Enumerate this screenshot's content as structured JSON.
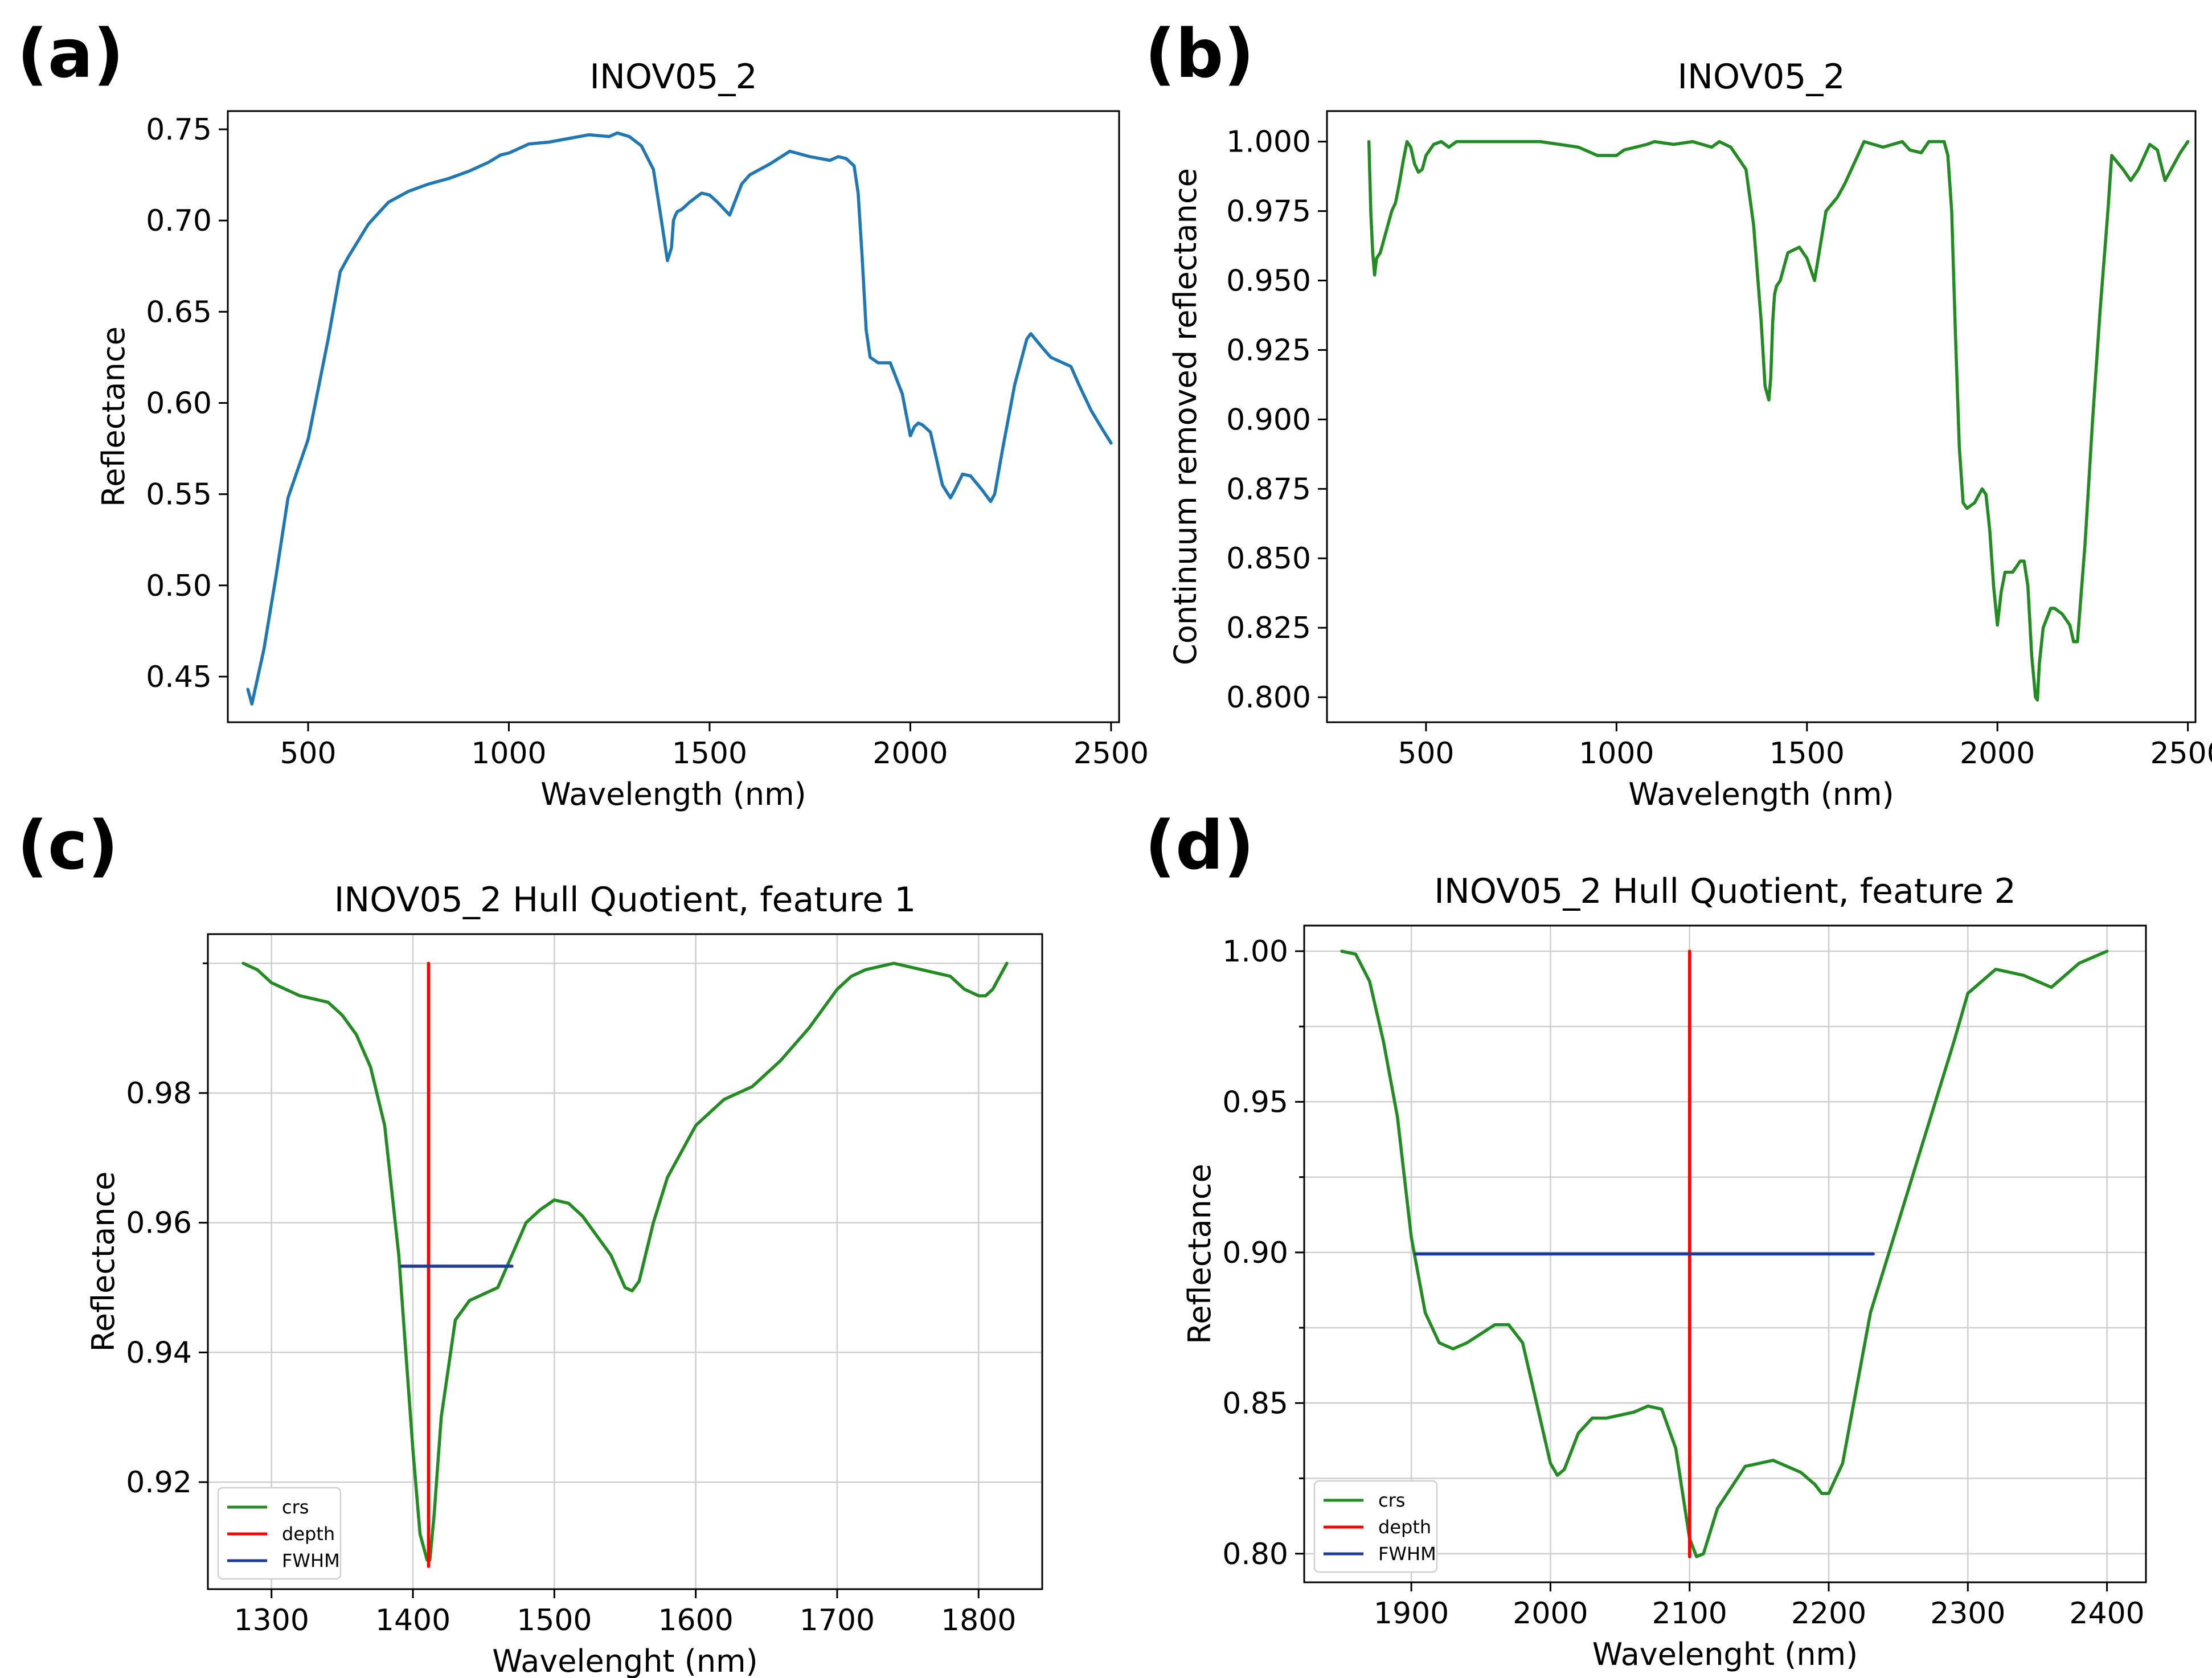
{
  "chart_data": [
    {
      "id": "a",
      "panel_label": "(a)",
      "type": "line",
      "title": "INOV05_2",
      "xlabel": "Wavelength (nm)",
      "ylabel": "Reflectance",
      "xlim": [
        300,
        2520
      ],
      "ylim": [
        0.425,
        0.76
      ],
      "xticks": [
        500,
        1000,
        1500,
        2000,
        2500
      ],
      "yticks": [
        0.45,
        0.5,
        0.55,
        0.6,
        0.65,
        0.7,
        0.75
      ],
      "ytick_decimals": 2,
      "grid": false,
      "series": [
        {
          "name": "reflectance",
          "color": "#1f77b4",
          "x": [
            350,
            360,
            370,
            390,
            420,
            450,
            500,
            550,
            580,
            600,
            650,
            700,
            750,
            800,
            850,
            900,
            950,
            980,
            1000,
            1050,
            1100,
            1150,
            1200,
            1250,
            1270,
            1300,
            1330,
            1360,
            1380,
            1395,
            1405,
            1410,
            1415,
            1420,
            1430,
            1450,
            1480,
            1500,
            1520,
            1550,
            1580,
            1600,
            1650,
            1700,
            1750,
            1800,
            1820,
            1840,
            1860,
            1870,
            1880,
            1890,
            1900,
            1920,
            1950,
            1980,
            2000,
            2010,
            2020,
            2030,
            2050,
            2080,
            2100,
            2110,
            2130,
            2150,
            2180,
            2200,
            2210,
            2230,
            2260,
            2290,
            2300,
            2330,
            2350,
            2380,
            2400,
            2420,
            2450,
            2480,
            2500
          ],
          "y": [
            0.443,
            0.435,
            0.445,
            0.465,
            0.505,
            0.548,
            0.58,
            0.635,
            0.672,
            0.68,
            0.698,
            0.71,
            0.716,
            0.72,
            0.723,
            0.727,
            0.732,
            0.736,
            0.737,
            0.742,
            0.743,
            0.745,
            0.747,
            0.746,
            0.748,
            0.746,
            0.741,
            0.728,
            0.7,
            0.678,
            0.685,
            0.7,
            0.703,
            0.705,
            0.706,
            0.71,
            0.715,
            0.714,
            0.71,
            0.703,
            0.72,
            0.725,
            0.731,
            0.738,
            0.735,
            0.733,
            0.735,
            0.734,
            0.73,
            0.715,
            0.68,
            0.64,
            0.625,
            0.622,
            0.622,
            0.605,
            0.582,
            0.587,
            0.589,
            0.588,
            0.584,
            0.555,
            0.548,
            0.552,
            0.561,
            0.56,
            0.552,
            0.546,
            0.55,
            0.575,
            0.61,
            0.635,
            0.638,
            0.63,
            0.625,
            0.622,
            0.62,
            0.61,
            0.596,
            0.585,
            0.578
          ]
        }
      ]
    },
    {
      "id": "b",
      "panel_label": "(b)",
      "type": "line",
      "title": "INOV05_2",
      "xlabel": "Wavelength (nm)",
      "ylabel": "Continuum removed reflectance",
      "xlim": [
        240,
        2520
      ],
      "ylim": [
        0.791,
        1.011
      ],
      "xticks": [
        500,
        1000,
        1500,
        2000,
        2500
      ],
      "yticks": [
        0.8,
        0.825,
        0.85,
        0.875,
        0.9,
        0.925,
        0.95,
        0.975,
        1.0
      ],
      "ytick_decimals": 3,
      "grid": false,
      "series": [
        {
          "name": "continuum removed",
          "color": "#228b22",
          "x": [
            350,
            355,
            360,
            365,
            370,
            380,
            390,
            400,
            410,
            420,
            430,
            440,
            450,
            460,
            470,
            480,
            490,
            500,
            520,
            540,
            560,
            580,
            600,
            700,
            800,
            900,
            950,
            1000,
            1020,
            1050,
            1080,
            1100,
            1150,
            1200,
            1250,
            1270,
            1300,
            1340,
            1360,
            1380,
            1390,
            1400,
            1405,
            1410,
            1415,
            1420,
            1430,
            1450,
            1480,
            1500,
            1520,
            1550,
            1580,
            1600,
            1650,
            1700,
            1750,
            1770,
            1800,
            1820,
            1850,
            1860,
            1870,
            1880,
            1890,
            1900,
            1910,
            1920,
            1940,
            1960,
            1970,
            1980,
            1990,
            2000,
            2010,
            2020,
            2030,
            2040,
            2060,
            2070,
            2080,
            2090,
            2100,
            2105,
            2110,
            2120,
            2140,
            2150,
            2170,
            2190,
            2200,
            2210,
            2230,
            2250,
            2270,
            2290,
            2300,
            2330,
            2350,
            2370,
            2400,
            2420,
            2440,
            2460,
            2480,
            2500
          ],
          "y": [
            1.0,
            0.975,
            0.96,
            0.952,
            0.958,
            0.96,
            0.965,
            0.97,
            0.975,
            0.978,
            0.985,
            0.993,
            1.0,
            0.998,
            0.992,
            0.989,
            0.99,
            0.995,
            0.999,
            1.0,
            0.998,
            1.0,
            1.0,
            1.0,
            1.0,
            0.998,
            0.995,
            0.995,
            0.997,
            0.998,
            0.999,
            1.0,
            0.999,
            1.0,
            0.998,
            1.0,
            0.998,
            0.99,
            0.97,
            0.935,
            0.912,
            0.907,
            0.915,
            0.935,
            0.945,
            0.948,
            0.95,
            0.96,
            0.962,
            0.958,
            0.95,
            0.975,
            0.98,
            0.985,
            1.0,
            0.998,
            1.0,
            0.997,
            0.996,
            1.0,
            1.0,
            1.0,
            0.995,
            0.975,
            0.93,
            0.89,
            0.87,
            0.868,
            0.87,
            0.875,
            0.873,
            0.86,
            0.84,
            0.826,
            0.838,
            0.845,
            0.845,
            0.845,
            0.849,
            0.849,
            0.84,
            0.815,
            0.8,
            0.799,
            0.812,
            0.825,
            0.832,
            0.832,
            0.83,
            0.826,
            0.82,
            0.82,
            0.855,
            0.9,
            0.94,
            0.975,
            0.995,
            0.99,
            0.986,
            0.99,
            0.999,
            0.997,
            0.986,
            0.991,
            0.996,
            1.0
          ]
        }
      ]
    },
    {
      "id": "c",
      "panel_label": "(c)",
      "type": "line",
      "title": "INOV05_2 Hull Quotient, feature 1",
      "xlabel": "Wavelenght (nm)",
      "ylabel": "Reflectance",
      "xlim": [
        1255,
        1845
      ],
      "ylim": [
        0.9035,
        1.0045
      ],
      "xticks": [
        1300,
        1400,
        1500,
        1600,
        1700,
        1800
      ],
      "yticks": [
        0.92,
        0.94,
        0.96,
        0.98
      ],
      "ytick_decimals": 2,
      "minor_yticks": [
        1.0
      ],
      "grid": true,
      "legend": {
        "location": "lower-left",
        "entries": [
          "crs",
          "depth",
          "FWHM"
        ]
      },
      "series": [
        {
          "name": "crs",
          "color": "#228b22",
          "x": [
            1280,
            1290,
            1300,
            1320,
            1340,
            1350,
            1360,
            1370,
            1380,
            1390,
            1395,
            1400,
            1405,
            1410,
            1412,
            1415,
            1420,
            1430,
            1440,
            1450,
            1460,
            1470,
            1480,
            1490,
            1500,
            1510,
            1520,
            1530,
            1540,
            1550,
            1555,
            1560,
            1570,
            1580,
            1600,
            1620,
            1640,
            1660,
            1680,
            1700,
            1710,
            1720,
            1740,
            1760,
            1780,
            1790,
            1800,
            1805,
            1810,
            1815,
            1820
          ],
          "y": [
            1.0,
            0.999,
            0.997,
            0.995,
            0.994,
            0.992,
            0.989,
            0.984,
            0.975,
            0.955,
            0.94,
            0.925,
            0.912,
            0.908,
            0.908,
            0.915,
            0.93,
            0.945,
            0.948,
            0.949,
            0.95,
            0.955,
            0.96,
            0.962,
            0.9635,
            0.963,
            0.961,
            0.958,
            0.955,
            0.95,
            0.9495,
            0.951,
            0.96,
            0.967,
            0.975,
            0.979,
            0.981,
            0.985,
            0.99,
            0.996,
            0.998,
            0.999,
            1.0,
            0.999,
            0.998,
            0.996,
            0.995,
            0.995,
            0.996,
            0.998,
            1.0
          ]
        },
        {
          "name": "depth",
          "color": "#ff0000",
          "x": [
            1411,
            1411
          ],
          "y": [
            0.907,
            1.0
          ]
        },
        {
          "name": "FWHM",
          "color": "#1f3b99",
          "x": [
            1392,
            1470
          ],
          "y": [
            0.9533,
            0.9533
          ]
        }
      ]
    },
    {
      "id": "d",
      "panel_label": "(d)",
      "type": "line",
      "title": "INOV05_2 Hull Quotient, feature 2",
      "xlabel": "Wavelenght (nm)",
      "ylabel": "Reflectance",
      "xlim": [
        1823,
        2428
      ],
      "ylim": [
        0.7905,
        1.0085
      ],
      "xticks": [
        1900,
        2000,
        2100,
        2200,
        2300,
        2400
      ],
      "yticks": [
        0.8,
        0.85,
        0.9,
        0.95,
        1.0
      ],
      "ytick_decimals": 2,
      "minor_yticks": [
        0.825,
        0.875,
        0.925,
        0.975
      ],
      "grid": true,
      "legend": {
        "location": "lower-left",
        "entries": [
          "crs",
          "depth",
          "FWHM"
        ]
      },
      "series": [
        {
          "name": "crs",
          "color": "#228b22",
          "x": [
            1850,
            1860,
            1870,
            1880,
            1890,
            1900,
            1910,
            1920,
            1930,
            1940,
            1950,
            1960,
            1970,
            1980,
            1990,
            2000,
            2005,
            2010,
            2020,
            2030,
            2040,
            2050,
            2060,
            2070,
            2080,
            2090,
            2095,
            2100,
            2105,
            2110,
            2120,
            2140,
            2160,
            2180,
            2190,
            2195,
            2200,
            2210,
            2230,
            2250,
            2270,
            2290,
            2300,
            2320,
            2340,
            2350,
            2360,
            2370,
            2380,
            2390,
            2400
          ],
          "y": [
            1.0,
            0.999,
            0.99,
            0.97,
            0.945,
            0.905,
            0.88,
            0.87,
            0.868,
            0.87,
            0.873,
            0.876,
            0.876,
            0.87,
            0.85,
            0.83,
            0.826,
            0.828,
            0.84,
            0.845,
            0.845,
            0.846,
            0.847,
            0.849,
            0.848,
            0.835,
            0.82,
            0.805,
            0.799,
            0.8,
            0.815,
            0.829,
            0.831,
            0.827,
            0.823,
            0.82,
            0.82,
            0.83,
            0.88,
            0.91,
            0.94,
            0.97,
            0.986,
            0.994,
            0.992,
            0.99,
            0.988,
            0.992,
            0.996,
            0.998,
            1.0
          ]
        },
        {
          "name": "depth",
          "color": "#ff0000",
          "x": [
            2100,
            2100
          ],
          "y": [
            0.799,
            1.0
          ]
        },
        {
          "name": "FWHM",
          "color": "#1f3b99",
          "x": [
            1903,
            2232
          ],
          "y": [
            0.8995,
            0.8995
          ]
        }
      ]
    }
  ]
}
